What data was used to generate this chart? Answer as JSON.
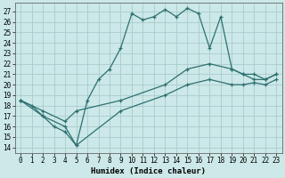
{
  "xlabel": "Humidex (Indice chaleur)",
  "bg_color": "#cce8e8",
  "grid_color": "#aacccc",
  "line_color": "#2d7070",
  "xlim": [
    -0.5,
    23.5
  ],
  "ylim": [
    13.5,
    27.8
  ],
  "xticks": [
    0,
    1,
    2,
    3,
    4,
    5,
    6,
    7,
    8,
    9,
    10,
    11,
    12,
    13,
    14,
    15,
    16,
    17,
    18,
    19,
    20,
    21,
    22,
    23
  ],
  "yticks": [
    14,
    15,
    16,
    17,
    18,
    19,
    20,
    21,
    22,
    23,
    24,
    25,
    26,
    27
  ],
  "curve1_x": [
    0,
    1,
    2,
    3,
    4,
    5,
    6,
    7,
    8,
    9,
    10,
    11,
    12,
    13,
    14,
    15,
    16,
    17,
    18,
    19,
    20,
    21,
    22,
    23
  ],
  "curve1_y": [
    18.5,
    18.0,
    17.0,
    16.0,
    15.5,
    14.2,
    18.5,
    20.5,
    21.5,
    23.5,
    26.8,
    26.2,
    26.5,
    27.2,
    26.5,
    27.3,
    26.8,
    23.5,
    26.5,
    21.5,
    21.0,
    20.5,
    20.5,
    21.0
  ],
  "curve2_x": [
    0,
    2,
    4,
    5,
    9,
    13,
    15,
    17,
    19,
    20,
    21,
    22,
    23
  ],
  "curve2_y": [
    18.5,
    17.5,
    16.5,
    17.5,
    18.5,
    20.0,
    21.5,
    22.0,
    21.5,
    21.0,
    21.0,
    20.5,
    21.0
  ],
  "curve3_x": [
    0,
    2,
    4,
    5,
    9,
    13,
    15,
    17,
    19,
    20,
    21,
    22,
    23
  ],
  "curve3_y": [
    18.5,
    17.0,
    16.0,
    14.2,
    17.5,
    19.0,
    20.0,
    20.5,
    20.0,
    20.0,
    20.2,
    20.0,
    20.5
  ]
}
